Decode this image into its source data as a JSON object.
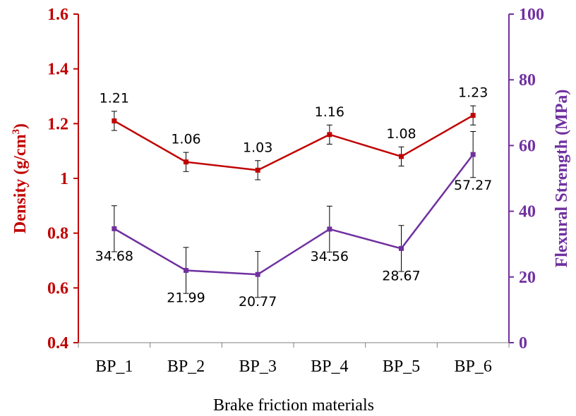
{
  "chart_data": {
    "type": "line",
    "categories": [
      "BP_1",
      "BP_2",
      "BP_3",
      "BP_4",
      "BP_5",
      "BP_6"
    ],
    "xlabel": "Brake friction materials",
    "ylabel_left": "Density (g/cm",
    "ylabel_left_sup": "3",
    "ylabel_left_end": ")",
    "ylabel_right": "Flexural Strength (MPa)",
    "ylim_left": [
      0.4,
      1.6
    ],
    "ylim_right": [
      0,
      100
    ],
    "yticks_left": [
      "0.4",
      "0.6",
      "0.8",
      "1",
      "1.2",
      "1.4",
      "1.6"
    ],
    "yticks_right": [
      "0",
      "20",
      "40",
      "60",
      "80",
      "100"
    ],
    "grid": false,
    "series": [
      {
        "axis": "left",
        "color": "#c00000",
        "values": [
          1.21,
          1.06,
          1.03,
          1.16,
          1.08,
          1.23
        ],
        "errors": [
          0.035,
          0.035,
          0.035,
          0.035,
          0.035,
          0.035
        ],
        "labels": [
          "1.21",
          "1.06",
          "1.03",
          "1.16",
          "1.08",
          "1.23"
        ]
      },
      {
        "axis": "right",
        "color": "#7030a0",
        "values": [
          34.68,
          21.99,
          20.77,
          34.56,
          28.67,
          57.27
        ],
        "errors": [
          7,
          7,
          7,
          7,
          7,
          7
        ],
        "labels": [
          "34.68",
          "21.99",
          "20.77",
          "34.56",
          "28.67",
          "57.27"
        ]
      }
    ]
  }
}
